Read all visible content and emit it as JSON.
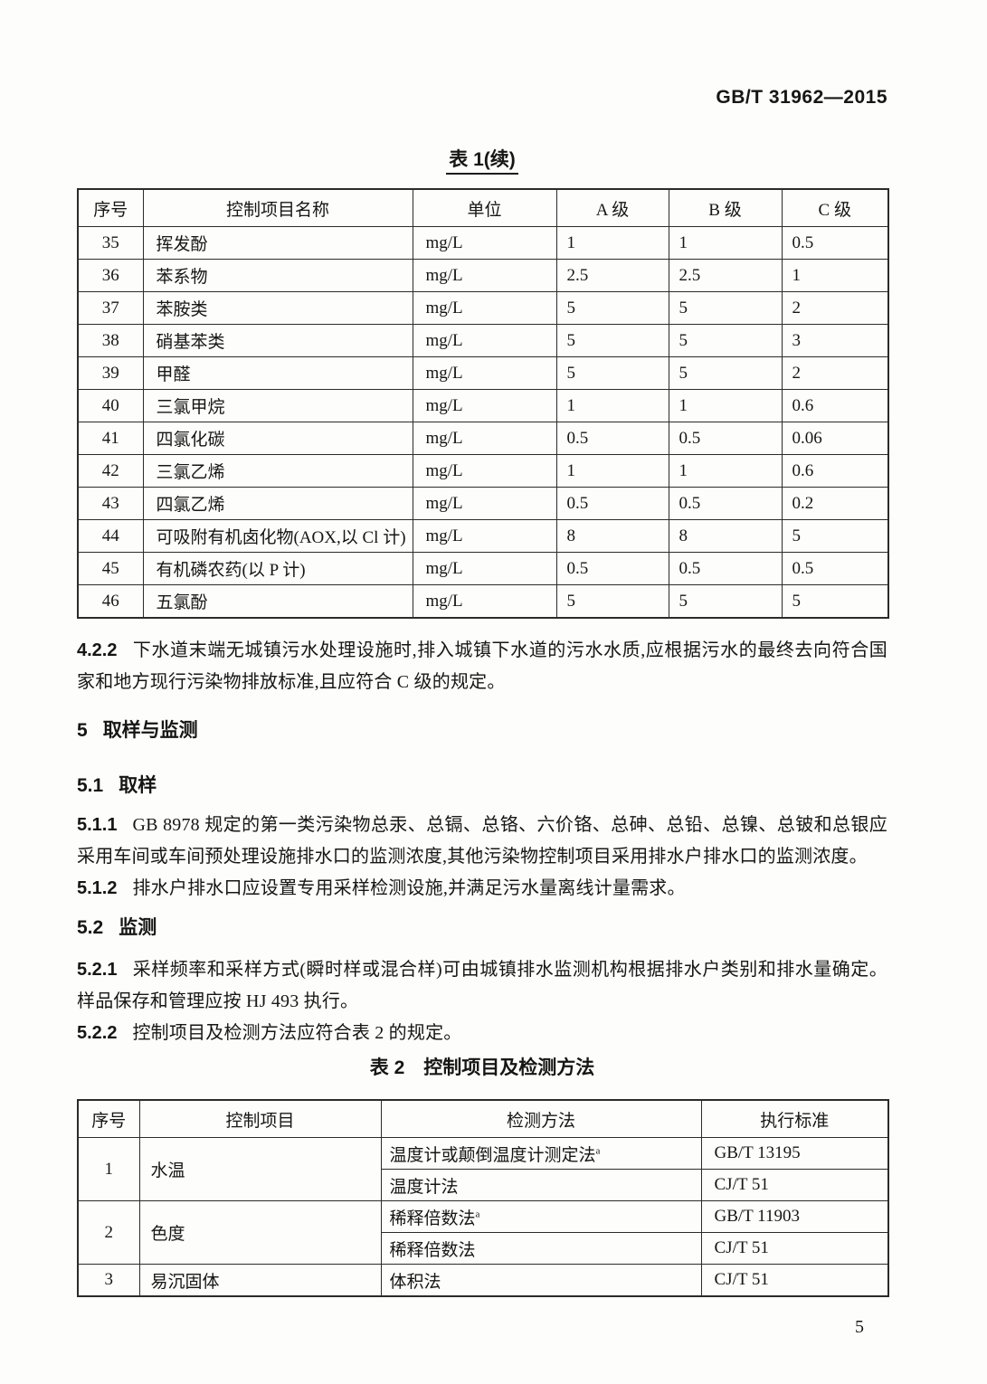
{
  "doc": {
    "code": "GB/T 31962—2015",
    "page_number": "5"
  },
  "table1": {
    "title": "表 1(续)",
    "headers": [
      "序号",
      "控制项目名称",
      "单位",
      "A 级",
      "B 级",
      "C 级"
    ],
    "rows": [
      [
        "35",
        "挥发酚",
        "mg/L",
        "1",
        "1",
        "0.5"
      ],
      [
        "36",
        "苯系物",
        "mg/L",
        "2.5",
        "2.5",
        "1"
      ],
      [
        "37",
        "苯胺类",
        "mg/L",
        "5",
        "5",
        "2"
      ],
      [
        "38",
        "硝基苯类",
        "mg/L",
        "5",
        "5",
        "3"
      ],
      [
        "39",
        "甲醛",
        "mg/L",
        "5",
        "5",
        "2"
      ],
      [
        "40",
        "三氯甲烷",
        "mg/L",
        "1",
        "1",
        "0.6"
      ],
      [
        "41",
        "四氯化碳",
        "mg/L",
        "0.5",
        "0.5",
        "0.06"
      ],
      [
        "42",
        "三氯乙烯",
        "mg/L",
        "1",
        "1",
        "0.6"
      ],
      [
        "43",
        "四氯乙烯",
        "mg/L",
        "0.5",
        "0.5",
        "0.2"
      ],
      [
        "44",
        "可吸附有机卤化物(AOX,以 Cl 计)",
        "mg/L",
        "8",
        "8",
        "5"
      ],
      [
        "45",
        "有机磷农药(以 P 计)",
        "mg/L",
        "0.5",
        "0.5",
        "0.5"
      ],
      [
        "46",
        "五氯酚",
        "mg/L",
        "5",
        "5",
        "5"
      ]
    ]
  },
  "sections": {
    "c422": {
      "num": "4.2.2",
      "text": "下水道末端无城镇污水处理设施时,排入城镇下水道的污水水质,应根据污水的最终去向符合国家和地方现行污染物排放标准,且应符合 C 级的规定。"
    },
    "h5": {
      "num": "5",
      "title": "取样与监测"
    },
    "h51": {
      "num": "5.1",
      "title": "取样"
    },
    "c511": {
      "num": "5.1.1",
      "text": "GB 8978 规定的第一类污染物总汞、总镉、总铬、六价铬、总砷、总铅、总镍、总铍和总银应采用车间或车间预处理设施排水口的监测浓度,其他污染物控制项目采用排水户排水口的监测浓度。"
    },
    "c512": {
      "num": "5.1.2",
      "text": "排水户排水口应设置专用采样检测设施,并满足污水量离线计量需求。"
    },
    "h52": {
      "num": "5.2",
      "title": "监测"
    },
    "c521": {
      "num": "5.2.1",
      "text": "采样频率和采样方式(瞬时样或混合样)可由城镇排水监测机构根据排水户类别和排水量确定。样品保存和管理应按 HJ 493 执行。"
    },
    "c522": {
      "num": "5.2.2",
      "text": "控制项目及检测方法应符合表 2 的规定。"
    }
  },
  "table2": {
    "title": "表 2　控制项目及检测方法",
    "headers": [
      "序号",
      "控制项目",
      "检测方法",
      "执行标准"
    ],
    "groups": [
      {
        "num": "1",
        "item": "水温",
        "methods": [
          {
            "method": "温度计或颠倒温度计测定法",
            "note": "a",
            "standard": "GB/T 13195"
          },
          {
            "method": "温度计法",
            "note": "",
            "standard": "CJ/T 51"
          }
        ]
      },
      {
        "num": "2",
        "item": "色度",
        "methods": [
          {
            "method": "稀释倍数法",
            "note": "a",
            "standard": "GB/T 11903"
          },
          {
            "method": "稀释倍数法",
            "note": "",
            "standard": "CJ/T 51"
          }
        ]
      },
      {
        "num": "3",
        "item": "易沉固体",
        "methods": [
          {
            "method": "体积法",
            "note": "",
            "standard": "CJ/T 51"
          }
        ]
      }
    ]
  }
}
